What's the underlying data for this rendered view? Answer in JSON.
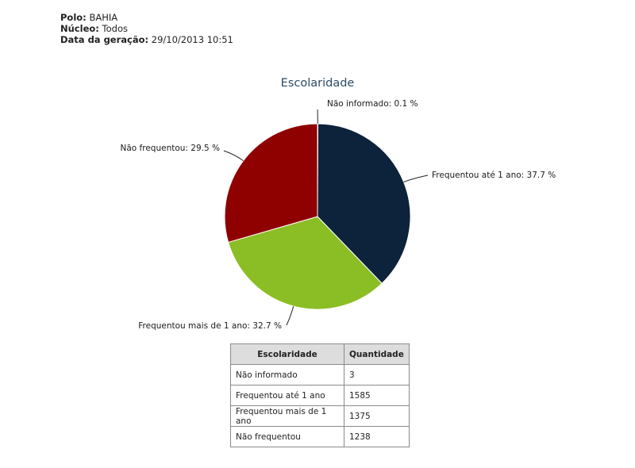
{
  "header": {
    "polo_label": "Polo:",
    "polo_value": "BAHIA",
    "nucleo_label": "Núcleo:",
    "nucleo_value": "Todos",
    "data_label": "Data da geração:",
    "data_value": "29/10/2013 10:51"
  },
  "chart_data": {
    "type": "pie",
    "title": "Escolaridade",
    "slices": [
      {
        "name": "Não informado",
        "value": 3,
        "percent": 0.1,
        "label": "Não informado: 0.1 %",
        "color": "#2a2a2a"
      },
      {
        "name": "Frequentou até 1 ano",
        "value": 1585,
        "percent": 37.7,
        "label": "Frequentou até 1 ano: 37.7 %",
        "color": "#0d223b"
      },
      {
        "name": "Frequentou mais de 1 ano",
        "value": 1375,
        "percent": 32.7,
        "label": "Frequentou mais de 1 ano: 32.7 %",
        "color": "#8bbd24"
      },
      {
        "name": "Não frequentou",
        "value": 1238,
        "percent": 29.5,
        "label": "Não frequentou: 29.5 %",
        "color": "#8f0000"
      }
    ]
  },
  "table": {
    "headers": [
      "Escolaridade",
      "Quantidade"
    ],
    "rows": [
      [
        "Não informado",
        "3"
      ],
      [
        "Frequentou até 1 ano",
        "1585"
      ],
      [
        "Frequentou mais de 1 ano",
        "1375"
      ],
      [
        "Não frequentou",
        "1238"
      ]
    ]
  }
}
